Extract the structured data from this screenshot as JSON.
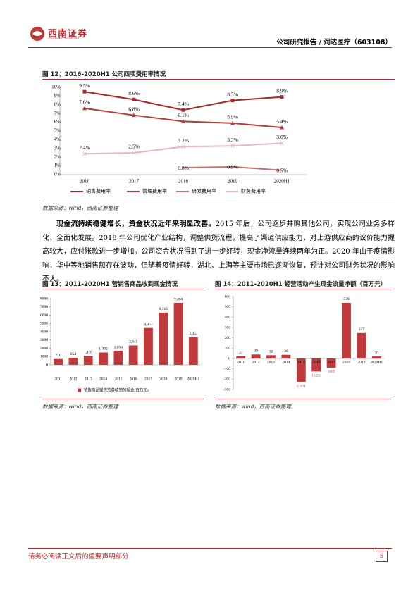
{
  "header": {
    "logo": "西南证券",
    "logo_en": "SOUTHWEST SECURITIES",
    "report": "公司研究报告 / 润达医疗（603108）"
  },
  "paragraph": {
    "lead": "现金流持续稳健增长，资金状况近年来明显改善。",
    "text": "2015 年后，公司逐步并购其他公司，实现公司业务多样化、全面化发展。2018 年公司优化产业结构，调整供货流程，提高了渠道供应能力，对上游供应商的议价能力提高较大，应付账款进一步增加。公司资金状况得到了进一步好转，现金净流量连续两年为正。2020 年由于疫情影响，华中等地销售额存在波动，但随着疫情好转，湖北、上海等主要市场已逐渐恢复，预计对公司财务状况的影响不大。"
  },
  "chart_data": [
    {
      "type": "line",
      "title": "图 12：2016-2020H1 公司四项费用率情况",
      "source": "数据来源：wind，西南证券整理",
      "categories": [
        "2016",
        "2017",
        "2018",
        "2019",
        "2020H1"
      ],
      "ylim": [
        0,
        10
      ],
      "yticks": [
        {
          "value": 0,
          "label": "0%"
        },
        {
          "value": 1,
          "label": "1%"
        },
        {
          "value": 2,
          "label": "2%"
        },
        {
          "value": 3,
          "label": "3%"
        },
        {
          "value": 4,
          "label": "4%"
        },
        {
          "value": 5,
          "label": "5%"
        },
        {
          "value": 6,
          "label": "6%"
        },
        {
          "value": 7,
          "label": "7%"
        },
        {
          "value": 8,
          "label": "8%"
        },
        {
          "value": 9,
          "label": "9%"
        },
        {
          "value": 10,
          "label": "10%"
        }
      ],
      "series": [
        {
          "name": "销售费用率",
          "color": "#a8282c",
          "marker": "square",
          "values": [
            9.5,
            8.6,
            7.4,
            8.5,
            8.9
          ],
          "value_labels": [
            "9.5%",
            "8.6%",
            "7.4%",
            "8.5%",
            "8.9%"
          ]
        },
        {
          "name": "管理费用率",
          "color": "#b53a3c",
          "marker": "triangle",
          "values": [
            7.6,
            6.8,
            6.1,
            5.9,
            5.4
          ],
          "value_labels": [
            "7.6%",
            "6.8%",
            "6.1%",
            "5.9%",
            "5.4%"
          ]
        },
        {
          "name": "研发费用率",
          "color": "#c96f72",
          "marker": "none",
          "values": [
            null,
            null,
            0.8,
            0.9,
            0.5
          ],
          "value_labels": [
            null,
            null,
            "0.8%",
            "0.9%",
            "0.5%"
          ]
        },
        {
          "name": "财务费用率",
          "color": "#e6b9bc",
          "marker": "x",
          "values": [
            2.4,
            2.5,
            3.2,
            3.3,
            3.6
          ],
          "value_labels": [
            "2.4%",
            "2.5%",
            "3.2%",
            "3.3%",
            "3.6%"
          ]
        }
      ]
    },
    {
      "type": "bar",
      "title": "图 13：2011-2020H1 营销售商品收到现金情况",
      "source": "数据来源：wind，西南证券整理",
      "categories": [
        "2011",
        "2012",
        "2013",
        "2014",
        "2015",
        "2016",
        "2017",
        "2018",
        "2019",
        "2020H1"
      ],
      "ylim": [
        0,
        8000
      ],
      "yticks": [
        0,
        1000,
        2000,
        3000,
        4000,
        5000,
        6000,
        7000,
        8000
      ],
      "series": [
        {
          "name": "销售商品提供劳务收到的现金(百万元)",
          "color": "#c0393b",
          "values": [
            710,
            854,
            1103,
            1492,
            1694,
            2345,
            4452,
            6315,
            7490,
            3351
          ],
          "value_labels": [
            "710",
            "854",
            "1,103",
            "1,492",
            "1,694",
            "2,345",
            "4,452",
            "6,315",
            "7,490",
            "3,351"
          ]
        }
      ]
    },
    {
      "type": "bar",
      "title": "图 14：2011-2020H1 经营活动产生现金流量净额（百万元）",
      "source": "数据来源：wind，西南证券整理",
      "categories": [
        "2011",
        "2012",
        "2013",
        "2014",
        "2015",
        "2016",
        "2017",
        "2018",
        "2019",
        "2020H1"
      ],
      "ylim": [
        -300,
        600
      ],
      "yticks": [
        -300,
        -200,
        -100,
        0,
        100,
        200,
        300,
        400,
        500,
        600
      ],
      "series": [
        {
          "color": "#c0393b",
          "values": [
            23,
            39,
            32,
            36,
            -227,
            -125,
            -88,
            539,
            247,
            20
          ],
          "value_labels": [
            "23",
            "39",
            "32",
            "36",
            "(227)",
            "(125)",
            "(88)",
            "539",
            "247",
            "20"
          ]
        }
      ]
    }
  ],
  "footer": {
    "disclaimer": "请务必阅读正文后的重要声明部分",
    "page": 5
  }
}
